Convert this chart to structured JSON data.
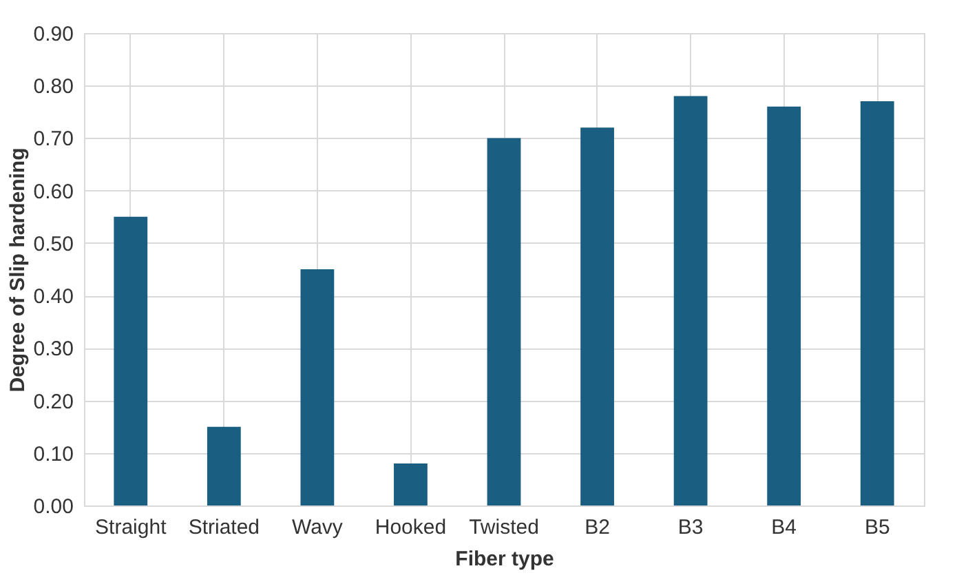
{
  "chart_data": {
    "type": "bar",
    "xlabel": "Fiber type",
    "ylabel": "Degree of Slip hardening",
    "categories": [
      "Straight",
      "Striated",
      "Wavy",
      "Hooked",
      "Twisted",
      "B2",
      "B3",
      "B4",
      "B5"
    ],
    "values": [
      0.55,
      0.15,
      0.45,
      0.08,
      0.7,
      0.72,
      0.78,
      0.76,
      0.77
    ],
    "color": "#1a5e82",
    "ylim": [
      0,
      0.9
    ],
    "yticks": [
      {
        "value": 0,
        "label": "0.00"
      },
      {
        "value": 0.1,
        "label": "0.10"
      },
      {
        "value": 0.2,
        "label": "0.20"
      },
      {
        "value": 0.3,
        "label": "0.30"
      },
      {
        "value": 0.4,
        "label": "0.40"
      },
      {
        "value": 0.5,
        "label": "0.50"
      },
      {
        "value": 0.6,
        "label": "0.60"
      },
      {
        "value": 0.7,
        "label": "0.70"
      },
      {
        "value": 0.8,
        "label": "0.80"
      },
      {
        "value": 0.9,
        "label": "0.90"
      }
    ],
    "grid": true
  }
}
